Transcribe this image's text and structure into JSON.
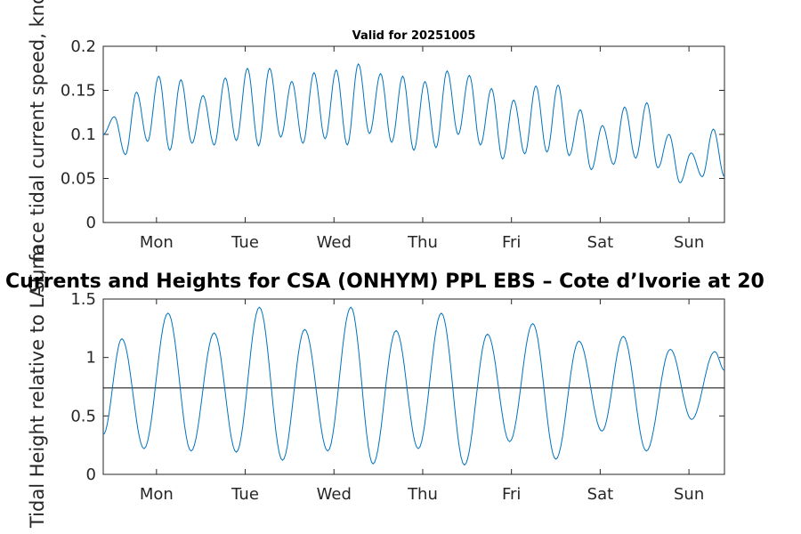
{
  "colors": {
    "series": "#0072bd",
    "mean_line": "#000000",
    "axes": "#262626"
  },
  "chart_data": [
    {
      "type": "line",
      "title": "Valid for 20251005",
      "ylabel": "Surface tidal current speed, knots",
      "xlabel": "",
      "ylim": [
        0,
        0.2
      ],
      "yticks": [
        "0",
        "0.05",
        "0.1",
        "0.15",
        "0.2"
      ],
      "xlim_days": [
        0,
        7
      ],
      "x_ticks": [
        {
          "label": "Mon",
          "day": 0.6
        },
        {
          "label": "Tue",
          "day": 1.6
        },
        {
          "label": "Wed",
          "day": 2.6
        },
        {
          "label": "Thu",
          "day": 3.6
        },
        {
          "label": "Fri",
          "day": 4.6
        },
        {
          "label": "Sat",
          "day": 5.6
        },
        {
          "label": "Sun",
          "day": 6.6
        }
      ],
      "series": [
        {
          "name": "Current speed",
          "peaks": [
            0.12,
            0.148,
            0.166,
            0.162,
            0.144,
            0.164,
            0.175,
            0.175,
            0.16,
            0.17,
            0.173,
            0.18,
            0.169,
            0.166,
            0.16,
            0.172,
            0.167,
            0.152,
            0.139,
            0.155,
            0.156,
            0.128,
            0.11,
            0.131,
            0.136,
            0.1,
            0.079,
            0.106
          ],
          "troughs": [
            0.1,
            0.077,
            0.092,
            0.082,
            0.09,
            0.088,
            0.093,
            0.087,
            0.097,
            0.09,
            0.095,
            0.088,
            0.101,
            0.091,
            0.082,
            0.085,
            0.1,
            0.088,
            0.072,
            0.078,
            0.08,
            0.076,
            0.06,
            0.066,
            0.073,
            0.062,
            0.045,
            0.052
          ]
        }
      ]
    },
    {
      "type": "line",
      "title": "Currents and Heights for CSA (ONHYM) PPL EBS  – Cote d’Ivorie at 20",
      "ylabel": "Tidal Height relative to LAT, m",
      "xlabel": "",
      "ylim": [
        0,
        1.5
      ],
      "yticks": [
        "0",
        "0.5",
        "1",
        "1.5"
      ],
      "xlim_days": [
        0,
        7
      ],
      "reference_line": 0.74,
      "x_ticks": [
        {
          "label": "Mon",
          "day": 0.6
        },
        {
          "label": "Tue",
          "day": 1.6
        },
        {
          "label": "Wed",
          "day": 2.6
        },
        {
          "label": "Thu",
          "day": 3.6
        },
        {
          "label": "Fri",
          "day": 4.6
        },
        {
          "label": "Sat",
          "day": 5.6
        },
        {
          "label": "Sun",
          "day": 6.6
        }
      ],
      "series": [
        {
          "name": "Tidal height",
          "start_value": 0.34,
          "end_value": 0.89,
          "extrema": [
            {
              "day": 0.21,
              "value": 1.16
            },
            {
              "day": 0.46,
              "value": 0.22
            },
            {
              "day": 0.73,
              "value": 1.38
            },
            {
              "day": 0.99,
              "value": 0.2
            },
            {
              "day": 1.25,
              "value": 1.21
            },
            {
              "day": 1.5,
              "value": 0.19
            },
            {
              "day": 1.76,
              "value": 1.43
            },
            {
              "day": 2.02,
              "value": 0.12
            },
            {
              "day": 2.27,
              "value": 1.24
            },
            {
              "day": 2.53,
              "value": 0.2
            },
            {
              "day": 2.79,
              "value": 1.43
            },
            {
              "day": 3.04,
              "value": 0.09
            },
            {
              "day": 3.3,
              "value": 1.23
            },
            {
              "day": 3.55,
              "value": 0.22
            },
            {
              "day": 3.81,
              "value": 1.38
            },
            {
              "day": 4.07,
              "value": 0.08
            },
            {
              "day": 4.33,
              "value": 1.2
            },
            {
              "day": 4.58,
              "value": 0.28
            },
            {
              "day": 4.84,
              "value": 1.29
            },
            {
              "day": 5.1,
              "value": 0.13
            },
            {
              "day": 5.36,
              "value": 1.14
            },
            {
              "day": 5.62,
              "value": 0.37
            },
            {
              "day": 5.86,
              "value": 1.18
            },
            {
              "day": 6.12,
              "value": 0.2
            },
            {
              "day": 6.39,
              "value": 1.07
            },
            {
              "day": 6.63,
              "value": 0.47
            },
            {
              "day": 6.89,
              "value": 1.05
            }
          ]
        }
      ]
    }
  ]
}
